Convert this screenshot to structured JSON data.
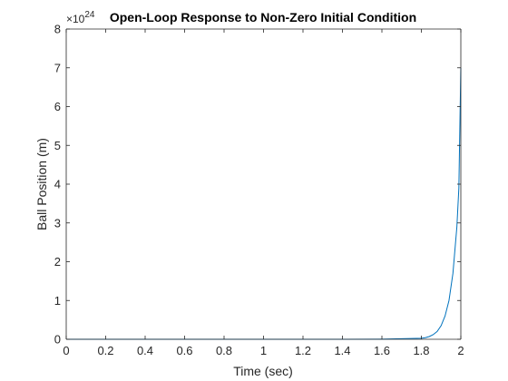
{
  "chart_data": {
    "type": "line",
    "title": "Open-Loop Response to Non-Zero Initial Condition",
    "xlabel": "Time (sec)",
    "ylabel": "Ball Position (m)",
    "y_exponent_label": "×10",
    "y_exponent_power": "24",
    "xlim": [
      0,
      2
    ],
    "ylim": [
      0,
      8
    ],
    "x_ticks": [
      "0",
      "0.2",
      "0.4",
      "0.6",
      "0.8",
      "1",
      "1.2",
      "1.4",
      "1.6",
      "1.8",
      "2"
    ],
    "y_ticks": [
      "0",
      "1",
      "2",
      "3",
      "4",
      "5",
      "6",
      "7",
      "8"
    ],
    "grid": false,
    "line_color": "#0072BD",
    "series": [
      {
        "x": [
          0,
          0.2,
          0.4,
          0.6,
          0.8,
          1.0,
          1.2,
          1.4,
          1.6,
          1.8,
          1.82,
          1.84,
          1.86,
          1.88,
          1.9,
          1.92,
          1.94,
          1.96,
          1.98,
          1.99,
          2.0
        ],
        "y": [
          0,
          0,
          0,
          0,
          0,
          0,
          0,
          0,
          0.003,
          0.025,
          0.04,
          0.07,
          0.12,
          0.2,
          0.35,
          0.6,
          1.0,
          1.7,
          2.9,
          3.9,
          7.0
        ]
      }
    ]
  }
}
